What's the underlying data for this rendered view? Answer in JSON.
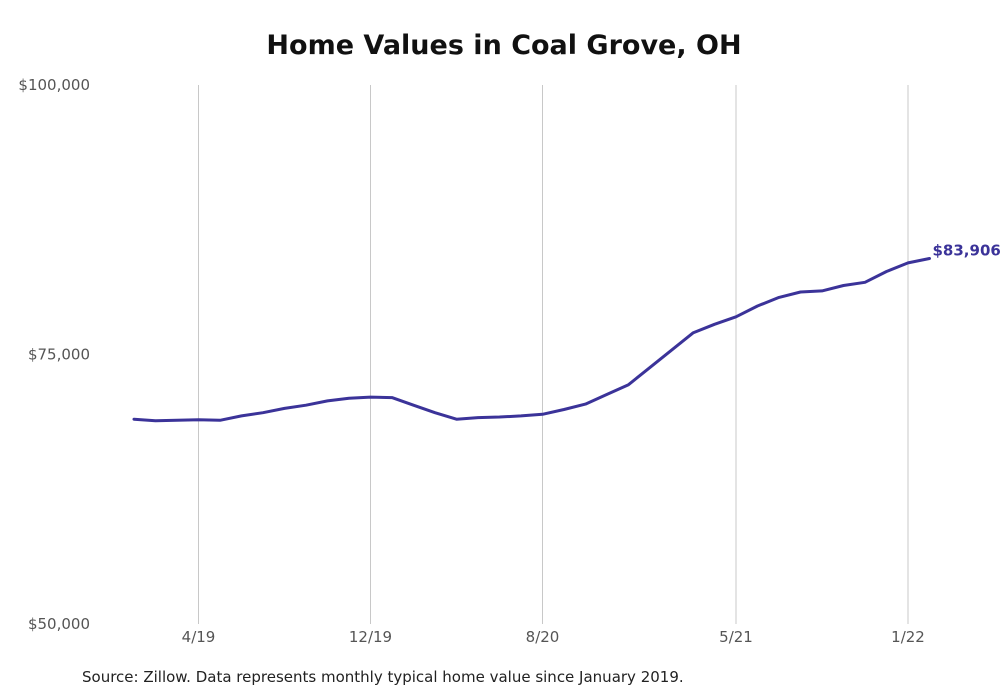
{
  "chart_data": {
    "type": "line",
    "title": "Home Values in Coal Grove, OH",
    "y_ticks": [
      "$100,000",
      "$75,000",
      "$50,000"
    ],
    "x_ticks": [
      "4/19",
      "12/19",
      "8/20",
      "5/21",
      "1/22"
    ],
    "ylim": [
      50000,
      100000
    ],
    "grid": "vertical",
    "line_color": "#3b3399",
    "end_label": "$83,906",
    "series": [
      {
        "x": [
          "1/19",
          "2/19",
          "3/19",
          "4/19",
          "5/19",
          "6/19",
          "7/19",
          "8/19",
          "9/19",
          "10/19",
          "11/19",
          "12/19",
          "1/20",
          "2/20",
          "3/20",
          "4/20",
          "5/20",
          "6/20",
          "7/20",
          "8/20",
          "9/20",
          "10/20",
          "11/20",
          "12/20",
          "1/21",
          "2/21",
          "3/21",
          "4/21",
          "5/21",
          "6/21",
          "7/21",
          "8/21",
          "9/21",
          "10/21",
          "11/21",
          "12/21",
          "1/22",
          "2/22"
        ],
        "values": [
          69000,
          68850,
          68900,
          68950,
          68900,
          69300,
          69600,
          70000,
          70300,
          70700,
          70950,
          71050,
          71000,
          70300,
          69600,
          69000,
          69150,
          69200,
          69300,
          69450,
          69900,
          70400,
          71300,
          72200,
          73800,
          75400,
          77000,
          77800,
          78500,
          79500,
          80300,
          80800,
          80900,
          81400,
          81700,
          82700,
          83500,
          83906
        ]
      }
    ]
  },
  "footer": "Source: Zillow. Data represents monthly typical home value since January 2019."
}
